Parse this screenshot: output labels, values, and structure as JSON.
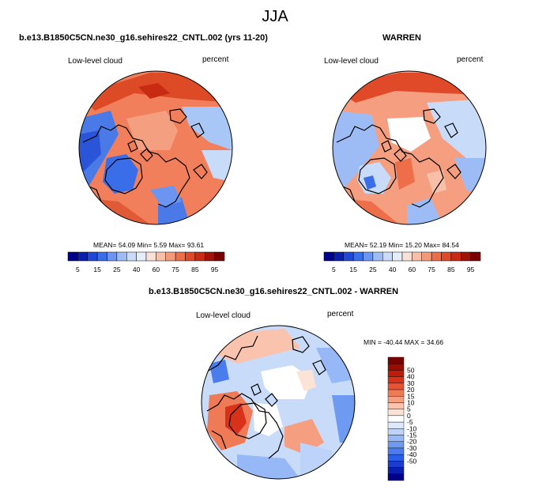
{
  "main_title": "JJA",
  "panels": [
    {
      "title": "b.e13.B1850C5CN.ne30_g16.sehires22_CNTL.002 (yrs 11-20)",
      "left_label": "Low-level cloud",
      "right_label": "percent",
      "stats": "MEAN=  54.09   Min=   5.59   Max=  93.61"
    },
    {
      "title": "WARREN",
      "left_label": "Low-level cloud",
      "right_label": "percent",
      "stats": "MEAN=  52.19   Min=  15.20   Max=  84.54"
    },
    {
      "title": "b.e13.B1850C5CN.ne30_g16.sehires22_CNTL.002 - WARREN",
      "left_label": "Low-level cloud",
      "right_label": "percent",
      "stats": "MIN = -40.44  MAX =  34.66"
    }
  ],
  "colorbar_top": {
    "colors": [
      "#00008b",
      "#0a1fb0",
      "#1f48d8",
      "#3a6ee8",
      "#6b95f0",
      "#9dbcf5",
      "#c8dcfa",
      "#e6eefc",
      "#fbe0d8",
      "#f8c0a8",
      "#f49a78",
      "#ee6e4a",
      "#e04a28",
      "#c92a12",
      "#a01408",
      "#7a0000"
    ],
    "labels": [
      "5",
      "15",
      "25",
      "40",
      "60",
      "75",
      "85",
      "95"
    ]
  },
  "colorbar_diff": {
    "colors": [
      "#00008b",
      "#0a1fb0",
      "#1a3ccf",
      "#2a5ee6",
      "#4a7cee",
      "#6f9af2",
      "#96b8f6",
      "#bdd3fa",
      "#dde8fc",
      "#ffffff",
      "#fde2d6",
      "#fac3ad",
      "#f59f80",
      "#ef7a56",
      "#e65434",
      "#d8321a",
      "#bd1c0a",
      "#9a0b02",
      "#7a0000"
    ],
    "labels": [
      "50",
      "40",
      "30",
      "20",
      "15",
      "10",
      "5",
      "0",
      "-5",
      "-10",
      "-15",
      "-20",
      "-30",
      "-40",
      "-50"
    ]
  }
}
